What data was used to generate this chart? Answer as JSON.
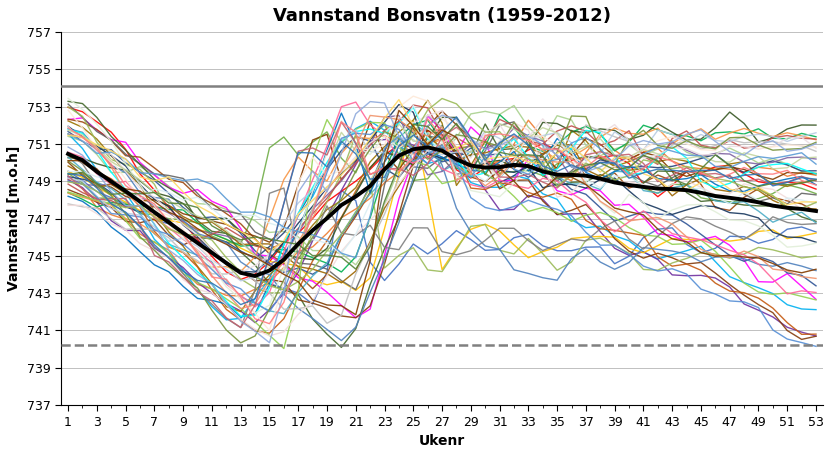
{
  "title": "Vannstand Bonsvatn (1959-2012)",
  "xlabel": "Ukenr",
  "ylabel": "Vannstand [m.o.h]",
  "ylim": [
    737,
    757
  ],
  "xlim": [
    1,
    53
  ],
  "yticks": [
    737,
    739,
    741,
    743,
    745,
    747,
    749,
    751,
    753,
    755,
    757
  ],
  "xticks": [
    1,
    3,
    5,
    7,
    9,
    11,
    13,
    15,
    17,
    19,
    21,
    23,
    25,
    27,
    29,
    31,
    33,
    35,
    37,
    39,
    41,
    43,
    45,
    47,
    49,
    51,
    53
  ],
  "hline_solid": 754.1,
  "hline_dashed": 740.2,
  "n_series": 53,
  "background_color": "#ffffff",
  "title_fontsize": 13,
  "axis_fontsize": 10,
  "tick_fontsize": 9
}
